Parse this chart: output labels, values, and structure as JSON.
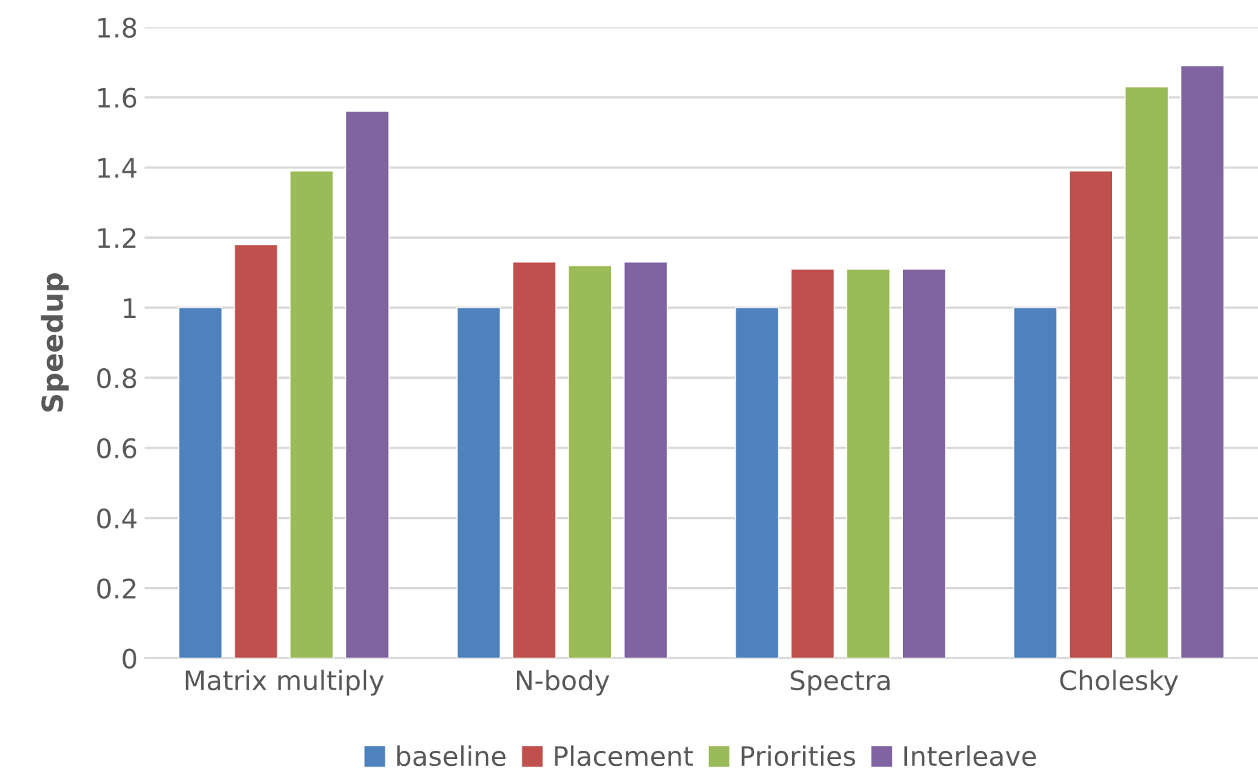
{
  "chart_data": {
    "type": "bar",
    "ylabel": "Speedup",
    "categories": [
      "Matrix multiply",
      "N-body",
      "Spectra",
      "Cholesky"
    ],
    "series": [
      {
        "name": "baseline",
        "color": "#4f81bd",
        "values": [
          1,
          1,
          1,
          1
        ]
      },
      {
        "name": "Placement",
        "color": "#c0504d",
        "values": [
          1.18,
          1.13,
          1.11,
          1.39
        ]
      },
      {
        "name": "Priorities",
        "color": "#9bbb59",
        "values": [
          1.39,
          1.12,
          1.11,
          1.63
        ]
      },
      {
        "name": "Interleave",
        "color": "#8064a2",
        "values": [
          1.56,
          1.13,
          1.11,
          1.69
        ]
      }
    ],
    "ylim": [
      0,
      1.8
    ],
    "yticks": [
      0,
      0.2,
      0.4,
      0.6,
      0.8,
      1,
      1.2,
      1.4,
      1.6,
      1.8
    ],
    "grid": "y",
    "legend": "bottom"
  }
}
